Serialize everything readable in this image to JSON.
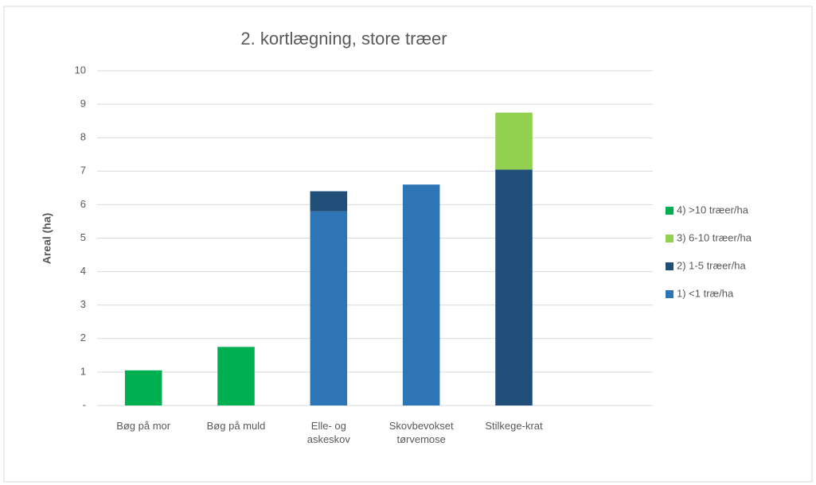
{
  "chart_data": {
    "type": "stacked_bar",
    "title": "2. kortlægning, store træer",
    "y_label": "Areal (ha)",
    "categories": [
      "Bøg på mor",
      "Bøg på muld",
      "Elle- og askeskov",
      "Skovbevokset tørvemose",
      "Stilkege-krat",
      null
    ],
    "series": [
      {
        "name": "1) <1 træ/ha",
        "color": "#2e75b6",
        "values": [
          null,
          null,
          5.8,
          6.6,
          null,
          null
        ]
      },
      {
        "name": "2) 1-5 træer/ha",
        "color": "#1f4e79",
        "values": [
          null,
          null,
          0.6,
          null,
          7.05,
          null
        ]
      },
      {
        "name": "3) 6-10 træer/ha",
        "color": "#92d050",
        "values": [
          null,
          null,
          null,
          null,
          1.7,
          null
        ]
      },
      {
        "name": "4) >10 træer/ha",
        "color": "#00b050",
        "values": [
          1.05,
          1.75,
          null,
          null,
          null,
          null
        ]
      }
    ],
    "ylim": [
      0,
      10
    ],
    "yticks": [
      {
        "value": 0,
        "label": "-"
      },
      1,
      2,
      3,
      4,
      5,
      6,
      7,
      8,
      9,
      10
    ],
    "grid": true,
    "legend": "right"
  }
}
